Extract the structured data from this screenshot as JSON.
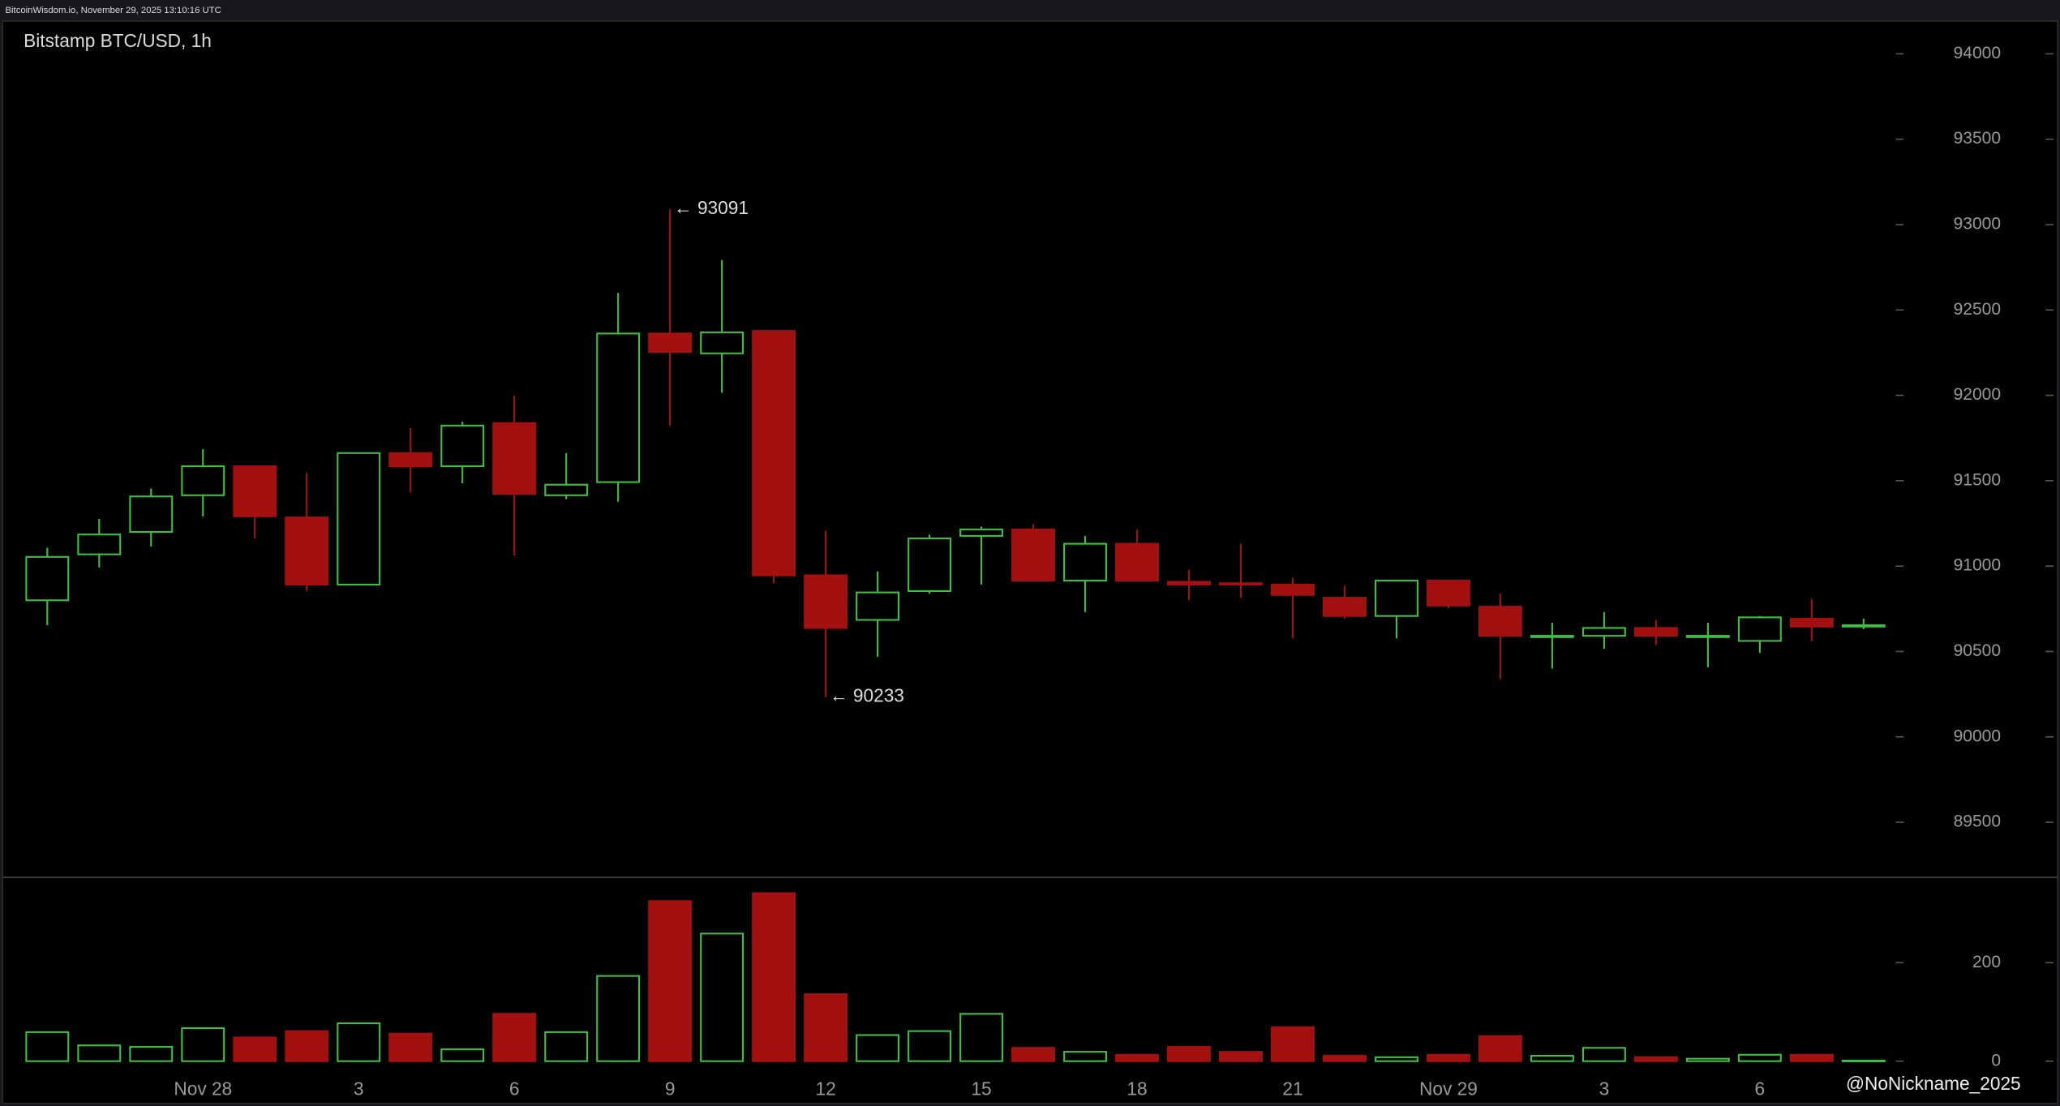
{
  "header": "BitcoinWisdom.io, November 29, 2025 13:10:16 UTC",
  "watermark": "@NoNickname_2025",
  "chart_data": [
    {
      "type": "candlestick",
      "title": "Bitstamp BTC/USD, 1h",
      "up_color": "#3fbf3f",
      "down_color": "#a31010",
      "open": [
        90800,
        91069,
        91200,
        91415,
        91585,
        91285,
        90892,
        91662,
        91585,
        91838,
        91415,
        91492,
        92362,
        92246,
        92377,
        90946,
        90685,
        90854,
        91177,
        91215,
        90915,
        91131,
        90908,
        90900,
        90892,
        90815,
        90708,
        90915,
        90762,
        90585,
        90592,
        90638,
        90585,
        90562,
        90692,
        90646
      ],
      "high": [
        91108,
        91277,
        91454,
        91685,
        91585,
        91546,
        91662,
        91808,
        91846,
        92000,
        91662,
        92600,
        93091,
        92792,
        92377,
        91208,
        90969,
        91185,
        91231,
        91246,
        91177,
        91215,
        90977,
        91131,
        90931,
        90885,
        90915,
        90915,
        90838,
        90669,
        90731,
        90685,
        90669,
        90708,
        90808,
        90692
      ],
      "low": [
        90654,
        90992,
        91115,
        91292,
        91162,
        90854,
        90892,
        91431,
        91485,
        91062,
        91392,
        91377,
        91823,
        92015,
        90900,
        90233,
        90469,
        90838,
        90892,
        90915,
        90731,
        90915,
        90800,
        90815,
        90577,
        90692,
        90577,
        90754,
        90338,
        90400,
        90515,
        90538,
        90408,
        90492,
        90562,
        90631
      ],
      "close": [
        91054,
        91185,
        91408,
        91585,
        91292,
        90892,
        91662,
        91585,
        91823,
        91423,
        91477,
        92362,
        92254,
        92369,
        90946,
        90638,
        90846,
        91162,
        91215,
        90915,
        91131,
        90915,
        90892,
        90892,
        90831,
        90708,
        90915,
        90769,
        90592,
        90592,
        90638,
        90592,
        90592,
        90700,
        90646,
        90654
      ],
      "annotations": [
        {
          "text": "← 93091",
          "value": 93091
        },
        {
          "text": "← 90233",
          "value": 90233
        }
      ],
      "ylim": [
        89177,
        94192
      ],
      "yticks": [
        89500,
        90000,
        90500,
        91000,
        91500,
        92000,
        92500,
        93000,
        93500,
        94000
      ]
    },
    {
      "type": "bar",
      "categories": [
        null,
        null,
        null,
        "Nov 28",
        null,
        null,
        "3",
        null,
        null,
        "6",
        null,
        null,
        "9",
        null,
        null,
        "12",
        null,
        null,
        "15",
        null,
        null,
        "18",
        null,
        null,
        "21",
        null,
        null,
        "Nov 29",
        null,
        null,
        "3",
        null,
        null,
        "6",
        null,
        null
      ],
      "values": [
        59,
        32,
        29,
        67,
        48,
        61,
        77,
        56,
        24,
        96,
        59,
        173,
        325,
        259,
        341,
        136,
        53,
        61,
        96,
        27,
        19,
        13,
        29,
        19,
        69,
        11,
        8,
        13,
        51,
        11,
        27,
        8,
        5,
        13,
        13,
        1
      ],
      "ylim": [
        -27,
        373
      ],
      "yticks": [
        0,
        200
      ]
    }
  ]
}
